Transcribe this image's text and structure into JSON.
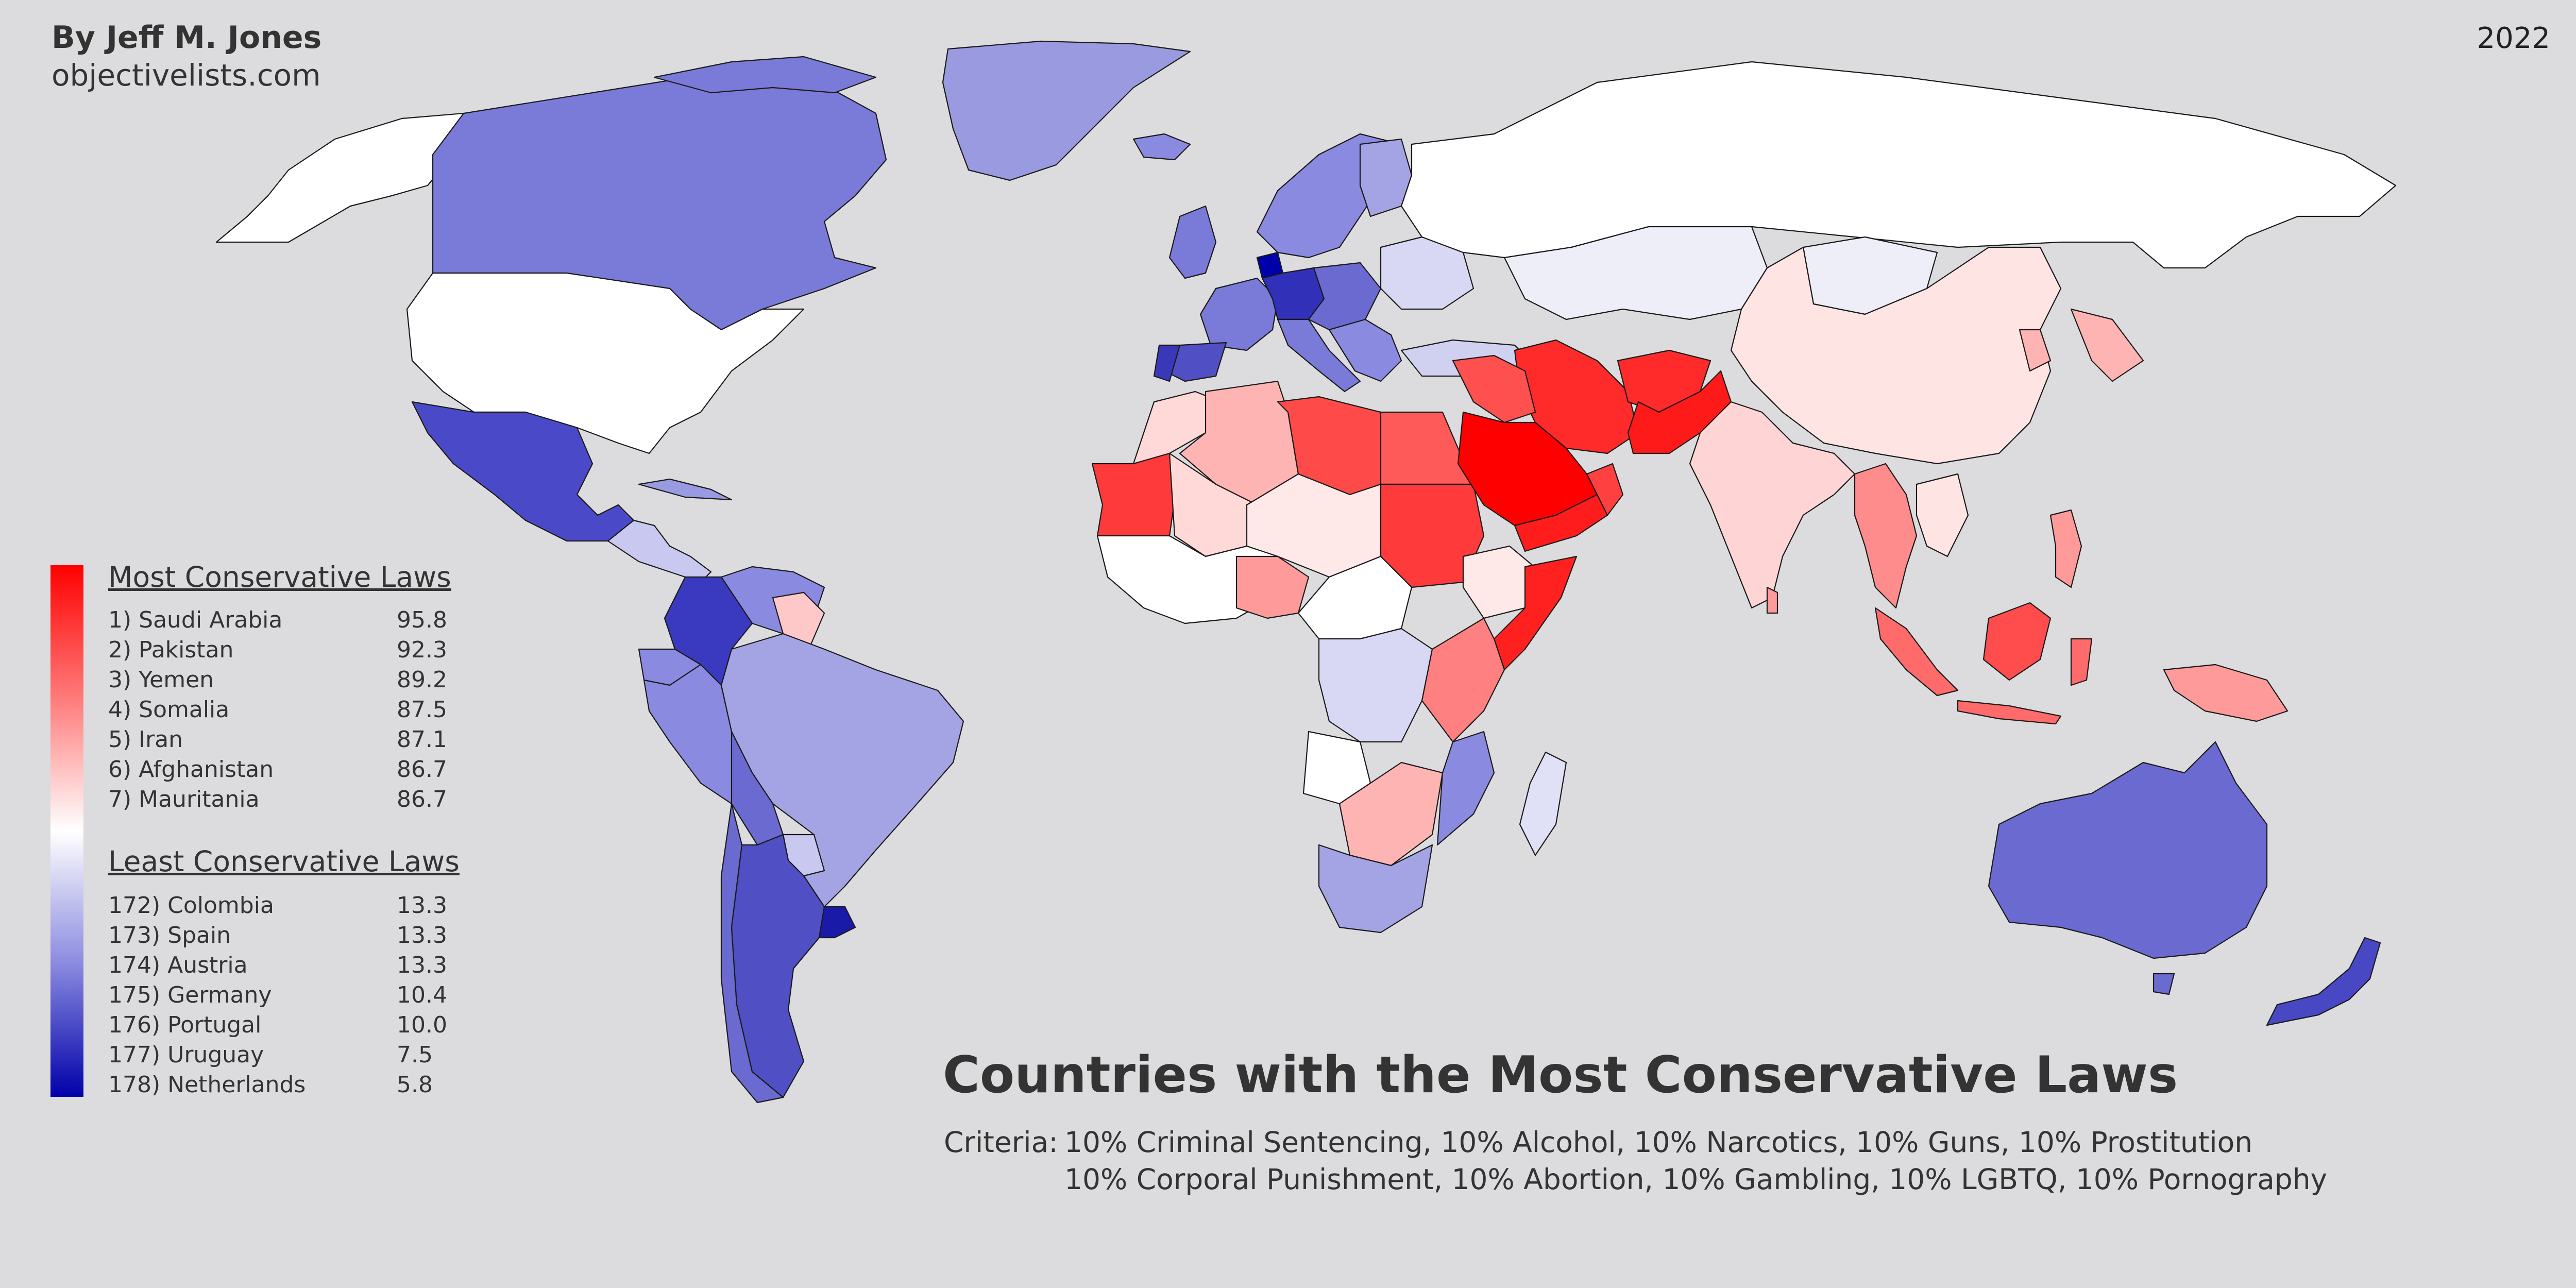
{
  "header": {
    "author": "By Jeff M. Jones",
    "website": "objectivelists.com",
    "year": "2022"
  },
  "title": "Countries with the Most Conservative Laws",
  "criteria": {
    "prefix": "Criteria:",
    "line1": "10% Criminal Sentencing, 10% Alcohol, 10% Narcotics, 10% Guns, 10% Prostitution",
    "line2": "10% Corporal Punishment, 10% Abortion, 10% Gambling, 10% LGBTQ, 10% Pornography"
  },
  "legend": {
    "scale_colors": [
      "#ff0000",
      "#ff7a7a",
      "#ffffff",
      "#8a8ae0",
      "#0000aa"
    ],
    "most_heading": "Most Conservative Laws",
    "most": [
      {
        "label": "1) Saudi Arabia",
        "score": "95.8"
      },
      {
        "label": "2) Pakistan",
        "score": "92.3"
      },
      {
        "label": "3) Yemen",
        "score": "89.2"
      },
      {
        "label": "4) Somalia",
        "score": "87.5"
      },
      {
        "label": "5) Iran",
        "score": "87.1"
      },
      {
        "label": "6) Afghanistan",
        "score": "86.7"
      },
      {
        "label": "7) Mauritania",
        "score": "86.7"
      }
    ],
    "least_heading": "Least Conservative Laws",
    "least": [
      {
        "label": "172) Colombia",
        "score": "13.3"
      },
      {
        "label": "173) Spain",
        "score": "13.3"
      },
      {
        "label": "174) Austria",
        "score": "13.3"
      },
      {
        "label": "175) Germany",
        "score": "10.4"
      },
      {
        "label": "176) Portugal",
        "score": "10.0"
      },
      {
        "label": "177) Uruguay",
        "score": "7.5"
      },
      {
        "label": "178) Netherlands",
        "score": "5.8"
      }
    ]
  },
  "map": {
    "background": "#dcdcde",
    "no_data_color": "#c8c8cc",
    "border_color": "#1a1a1a"
  }
}
